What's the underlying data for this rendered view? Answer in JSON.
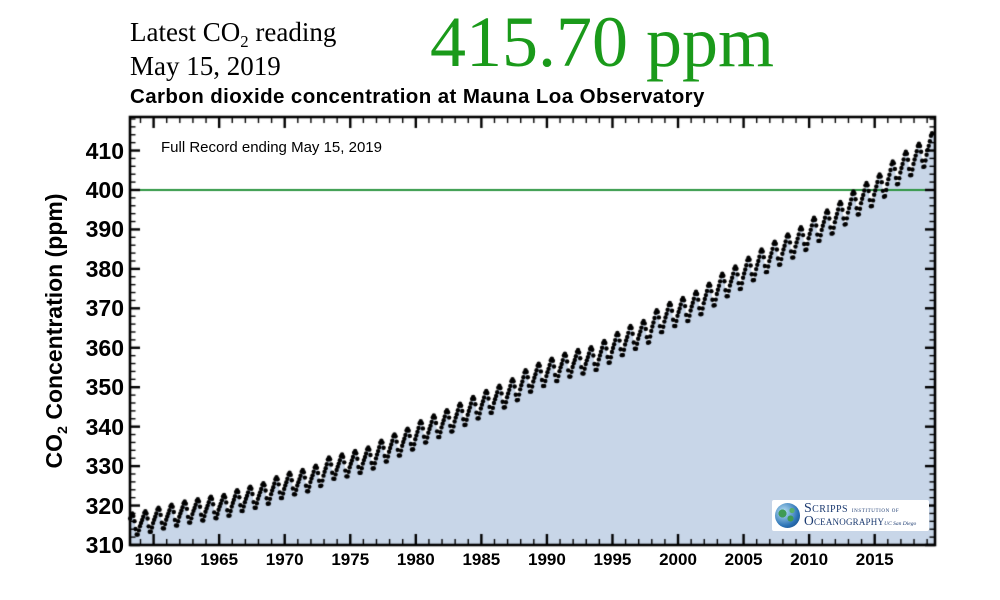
{
  "header": {
    "latest_pre": "Latest CO",
    "latest_sub": "2",
    "latest_post": " reading",
    "latest_date": "May 15, 2019",
    "latest_reading": "415.70 ppm",
    "reading_color": "#1a9a1a"
  },
  "chart": {
    "title": "Carbon dioxide concentration at Mauna Loa Observatory",
    "annotation": "Full Record ending May 15, 2019",
    "y_label_pre": "CO",
    "y_label_sub": "2",
    "y_label_post": " Concentration (ppm)"
  },
  "logo": {
    "name1": "Scripps",
    "name1_small": "INSTITUTION OF",
    "name2": "Oceanography",
    "name2_small": "UC San Diego"
  },
  "chart_data": {
    "type": "area",
    "title": "Carbon dioxide concentration at Mauna Loa Observatory",
    "xlabel": "",
    "ylabel": "CO2 Concentration (ppm)",
    "x_range": [
      1958.2,
      2019.6
    ],
    "y_range": [
      310,
      418.5
    ],
    "x_ticks": [
      1960,
      1965,
      1970,
      1975,
      1980,
      1985,
      1990,
      1995,
      2000,
      2005,
      2010,
      2015
    ],
    "x_minor_step": 1,
    "y_ticks": [
      310,
      320,
      330,
      340,
      350,
      360,
      370,
      380,
      390,
      400,
      410
    ],
    "y_minor_step": 2,
    "grid": false,
    "legend": "none",
    "reference_line": {
      "value": 400,
      "color": "#2c9440"
    },
    "fill_color": "#c8d6e8",
    "point_color": "#000000",
    "frame_color": "#000000",
    "series_start": {
      "year": 1958,
      "month": 3
    },
    "series_end": {
      "year": 2019,
      "month": 5
    },
    "annual_means": {
      "start_year": 1958,
      "values": [
        315.34,
        315.98,
        316.91,
        317.64,
        318.45,
        318.99,
        319.62,
        320.04,
        321.37,
        322.18,
        323.05,
        324.62,
        325.68,
        326.32,
        327.46,
        329.68,
        330.19,
        331.12,
        332.03,
        333.84,
        335.41,
        336.84,
        338.76,
        340.12,
        341.48,
        343.15,
        344.87,
        346.35,
        347.61,
        349.31,
        351.69,
        353.2,
        354.45,
        355.7,
        356.54,
        357.21,
        358.96,
        360.97,
        362.74,
        363.88,
        366.84,
        368.54,
        369.71,
        371.32,
        373.45,
        375.98,
        377.7,
        379.98,
        382.09,
        384.02,
        385.83,
        387.64,
        390.1,
        391.85,
        394.06,
        396.74,
        398.81,
        401.01,
        404.41,
        406.76,
        408.72,
        411.5
      ]
    },
    "seasonal_cycle_ppm": [
      -0.1,
      0.7,
      1.6,
      2.7,
      3.1,
      2.4,
      0.8,
      -1.6,
      -3.3,
      -3.4,
      -2.2,
      -1.0
    ],
    "seasonal_amplitude_scale": {
      "start": 0.85,
      "end": 1.05
    },
    "latest_value_ppm": 415.7
  }
}
